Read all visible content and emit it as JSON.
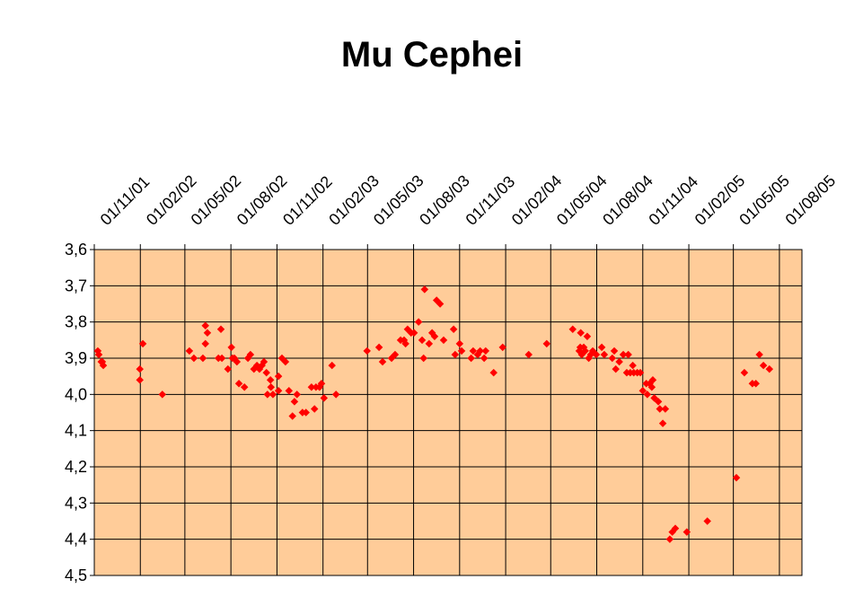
{
  "chart_data": {
    "type": "scatter",
    "title": "Mu Cephei",
    "x": [
      "2001-11-08",
      "2001-11-10",
      "2001-11-15",
      "2001-11-19",
      "2001-11-17",
      "2002-01-31",
      "2002-01-31",
      "2002-02-06",
      "2002-03-17",
      "2002-05-10",
      "2002-05-19",
      "2002-06-06",
      "2002-06-11",
      "2002-06-15",
      "2002-06-11",
      "2002-07-07",
      "2002-07-12",
      "2002-07-14",
      "2002-07-26",
      "2002-08-02",
      "2002-08-04",
      "2002-08-08",
      "2002-08-13",
      "2002-08-17",
      "2002-08-28",
      "2002-09-04",
      "2002-09-09",
      "2002-09-16",
      "2002-09-22",
      "2002-09-27",
      "2002-10-02",
      "2002-10-06",
      "2002-10-11",
      "2002-10-13",
      "2002-10-19",
      "2002-10-20",
      "2002-10-24",
      "2002-11-04",
      "2002-11-04",
      "2002-11-11",
      "2002-11-18",
      "2002-11-25",
      "2002-12-02",
      "2002-12-06",
      "2002-12-11",
      "2002-12-22",
      "2002-12-29",
      "2003-01-09",
      "2003-01-15",
      "2003-01-18",
      "2003-01-25",
      "2003-01-29",
      "2003-02-03",
      "2003-02-19",
      "2003-02-27",
      "2003-04-30",
      "2003-05-24",
      "2003-05-31",
      "2003-06-18",
      "2003-06-25",
      "2003-07-06",
      "2003-07-13",
      "2003-07-16",
      "2003-07-20",
      "2003-07-27",
      "2003-08-02",
      "2003-08-11",
      "2003-08-18",
      "2003-08-21",
      "2003-08-23",
      "2003-09-01",
      "2003-09-07",
      "2003-09-12",
      "2003-09-16",
      "2003-09-23",
      "2003-09-30",
      "2003-10-20",
      "2003-10-23",
      "2003-11-01",
      "2003-11-05",
      "2003-11-24",
      "2003-11-28",
      "2003-12-07",
      "2003-12-12",
      "2003-12-20",
      "2003-12-23",
      "2004-01-08",
      "2004-01-26",
      "2004-03-18",
      "2004-04-23",
      "2004-06-14",
      "2004-06-27",
      "2004-06-29",
      "2004-06-30",
      "2004-07-02",
      "2004-07-06",
      "2004-07-09",
      "2004-07-13",
      "2004-07-16",
      "2004-07-20",
      "2004-07-24",
      "2004-07-31",
      "2004-08-11",
      "2004-08-16",
      "2004-09-01",
      "2004-09-05",
      "2004-09-08",
      "2004-09-15",
      "2004-09-23",
      "2004-09-30",
      "2004-10-03",
      "2004-10-07",
      "2004-10-12",
      "2004-10-14",
      "2004-10-21",
      "2004-10-27",
      "2004-11-01",
      "2004-11-08",
      "2004-11-10",
      "2004-11-15",
      "2004-11-19",
      "2004-11-21",
      "2004-11-24",
      "2004-12-02",
      "2004-12-05",
      "2004-12-11",
      "2004-12-16",
      "2004-12-25",
      "2004-12-30",
      "2005-01-05",
      "2005-01-28",
      "2005-03-10",
      "2005-05-07",
      "2005-05-23",
      "2005-06-08",
      "2005-06-15",
      "2005-06-22",
      "2005-06-30",
      "2005-07-12"
    ],
    "values": [
      3.88,
      3.89,
      3.91,
      3.92,
      3.91,
      3.93,
      3.96,
      3.86,
      4.0,
      3.88,
      3.9,
      3.9,
      3.81,
      3.83,
      3.86,
      3.9,
      3.82,
      3.9,
      3.93,
      3.87,
      3.9,
      3.9,
      3.91,
      3.97,
      3.98,
      3.9,
      3.89,
      3.93,
      3.92,
      3.93,
      3.92,
      3.91,
      3.94,
      4.0,
      3.96,
      3.98,
      4.0,
      3.99,
      3.95,
      3.9,
      3.91,
      3.99,
      4.06,
      4.02,
      4.0,
      4.05,
      4.05,
      3.98,
      4.04,
      3.98,
      3.98,
      3.97,
      4.01,
      3.92,
      4.0,
      3.88,
      3.87,
      3.91,
      3.9,
      3.89,
      3.85,
      3.85,
      3.86,
      3.82,
      3.83,
      3.83,
      3.8,
      3.85,
      3.9,
      3.71,
      3.86,
      3.83,
      3.84,
      3.74,
      3.75,
      3.85,
      3.82,
      3.89,
      3.86,
      3.88,
      3.9,
      3.88,
      3.89,
      3.88,
      3.9,
      3.88,
      3.94,
      3.87,
      3.89,
      3.86,
      3.82,
      3.88,
      3.87,
      3.83,
      3.89,
      3.87,
      3.88,
      3.84,
      3.9,
      3.89,
      3.88,
      3.89,
      3.87,
      3.89,
      3.9,
      3.88,
      3.93,
      3.91,
      3.89,
      3.94,
      3.89,
      3.94,
      3.92,
      3.94,
      3.94,
      3.94,
      3.99,
      3.97,
      4.0,
      3.97,
      3.98,
      3.96,
      4.01,
      4.02,
      4.04,
      4.08,
      4.04,
      4.4,
      4.38,
      4.37,
      4.38,
      4.35,
      4.23,
      3.94,
      3.97,
      3.97,
      3.89,
      3.92,
      3.93
    ],
    "color": "#ff0000",
    "xlim": [
      "2001-11-01",
      "2005-09-15"
    ],
    "xticks": [
      {
        "value": "2001-11-01",
        "label": "01/11/01"
      },
      {
        "value": "2002-02-01",
        "label": "01/02/02"
      },
      {
        "value": "2002-05-01",
        "label": "01/05/02"
      },
      {
        "value": "2002-08-01",
        "label": "01/08/02"
      },
      {
        "value": "2002-11-01",
        "label": "01/11/02"
      },
      {
        "value": "2003-02-01",
        "label": "01/02/03"
      },
      {
        "value": "2003-05-01",
        "label": "01/05/03"
      },
      {
        "value": "2003-08-01",
        "label": "01/08/03"
      },
      {
        "value": "2003-11-01",
        "label": "01/11/03"
      },
      {
        "value": "2004-02-01",
        "label": "01/02/04"
      },
      {
        "value": "2004-05-01",
        "label": "01/05/04"
      },
      {
        "value": "2004-08-01",
        "label": "01/08/04"
      },
      {
        "value": "2004-11-01",
        "label": "01/11/04"
      },
      {
        "value": "2005-02-01",
        "label": "01/02/05"
      },
      {
        "value": "2005-05-01",
        "label": "01/05/05"
      },
      {
        "value": "2005-08-01",
        "label": "01/08/05"
      }
    ],
    "ylim": [
      4.5,
      3.6
    ],
    "yticks": [
      {
        "value": 3.6,
        "label": "3,6"
      },
      {
        "value": 3.7,
        "label": "3,7"
      },
      {
        "value": 3.8,
        "label": "3,8"
      },
      {
        "value": 3.9,
        "label": "3,9"
      },
      {
        "value": 4.0,
        "label": "4,0"
      },
      {
        "value": 4.1,
        "label": "4,1"
      },
      {
        "value": 4.2,
        "label": "4,2"
      },
      {
        "value": 4.3,
        "label": "4,3"
      },
      {
        "value": 4.4,
        "label": "4,4"
      },
      {
        "value": 4.5,
        "label": "4,5"
      }
    ],
    "grid": true
  }
}
